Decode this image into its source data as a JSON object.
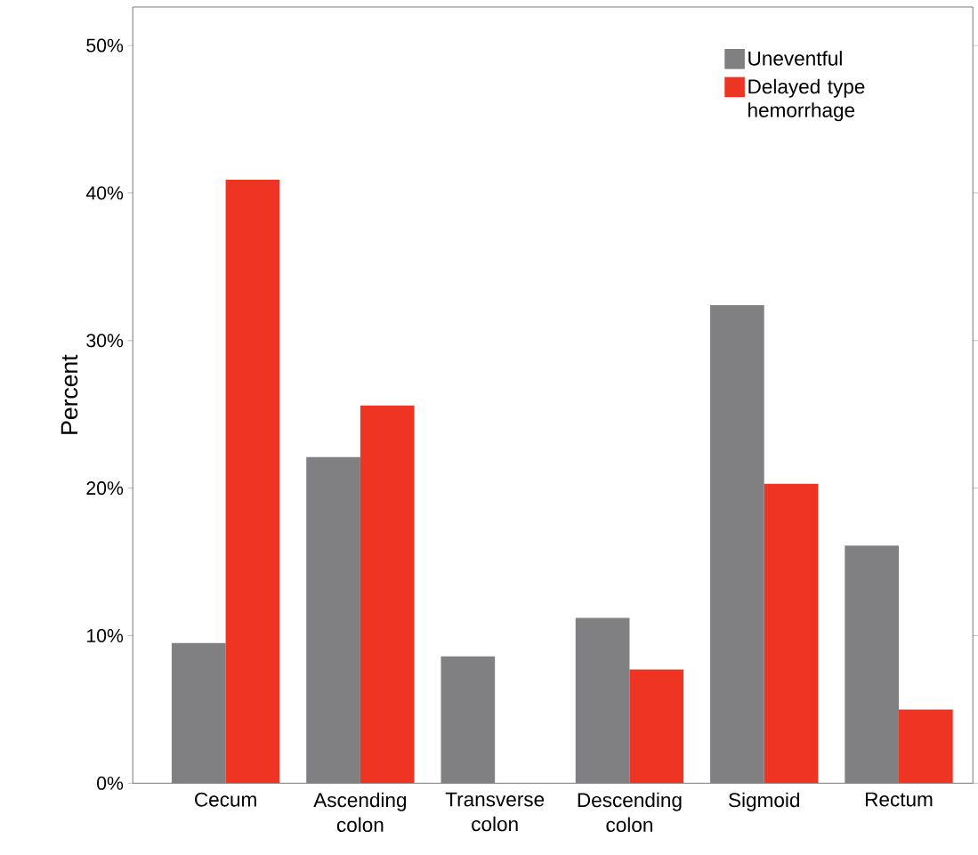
{
  "chart_data": {
    "type": "bar",
    "ylabel": "Percent",
    "categories": [
      "Cecum",
      "Ascending colon",
      "Transverse colon",
      "Descending colon",
      "Sigmoid",
      "Rectum"
    ],
    "series": [
      {
        "name": "Uneventful",
        "color": "#808083",
        "values": [
          9.5,
          22.1,
          8.6,
          11.2,
          32.4,
          16.1
        ]
      },
      {
        "name": "Delayed type hemorrhage",
        "color": "#ee3524",
        "values": [
          40.9,
          25.6,
          0,
          7.7,
          20.3,
          5.0
        ]
      }
    ],
    "ylim": [
      0,
      52.6
    ],
    "yticks": [
      {
        "value": 0,
        "label": "0%"
      },
      {
        "value": 10,
        "label": "10%"
      },
      {
        "value": 20,
        "label": "20%"
      },
      {
        "value": 30,
        "label": "30%"
      },
      {
        "value": 40,
        "label": "40%"
      },
      {
        "value": 50,
        "label": "50%"
      }
    ],
    "legend": "top right"
  }
}
